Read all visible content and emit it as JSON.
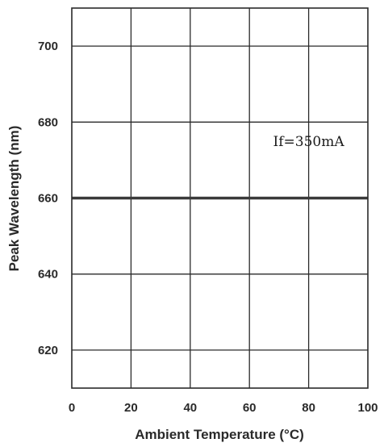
{
  "chart_data": {
    "type": "line",
    "title": "",
    "xlabel": "Ambient Temperature (°C)",
    "ylabel": "Peak Wavelength (nm)",
    "xlim": [
      0,
      100
    ],
    "ylim": [
      610,
      710
    ],
    "x_ticks": [
      0,
      20,
      40,
      60,
      80,
      100
    ],
    "y_ticks": [
      620,
      640,
      660,
      680,
      700
    ],
    "grid": true,
    "series": [
      {
        "x": [
          0,
          100
        ],
        "y": [
          660,
          660
        ]
      }
    ],
    "annotations": [
      {
        "text": "If=350mA",
        "x": 68,
        "y": 675
      }
    ],
    "colors": {
      "line": "#3a3a3a",
      "grid": "#2a2a2a",
      "text": "#2a2a2a"
    }
  }
}
